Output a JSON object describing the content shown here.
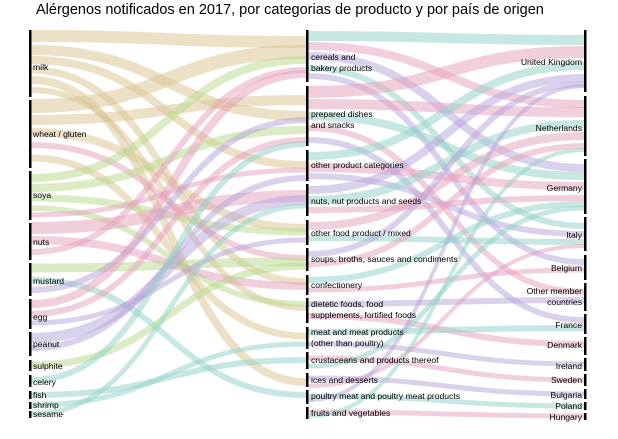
{
  "title": "Alérgenos notificados en 2017, por categorias de producto y por país de origen",
  "chart_data": {
    "type": "sankey",
    "left_column_allergens": [
      "milk",
      "wheat / gluten",
      "soya",
      "nuts",
      "mustard",
      "egg",
      "peanut",
      "sulphite",
      "celery",
      "fish",
      "shrimp",
      "sesame"
    ],
    "middle_column_product_categories": [
      "cereals and bakery products",
      "prepared dishes and snacks",
      "other product categories",
      "nuts, nut products and seeds",
      "other food product / mixed",
      "soups, broths, sauces and condiments",
      "confectionery",
      "dietetic foods, food supplements, fortified foods",
      "meat and meat products (other than poultry)",
      "crustaceans and products thereof",
      "ices and desserts",
      "poultry meat and poultry meat products",
      "fruits and vegetables"
    ],
    "right_column_countries": [
      "United Kingdom",
      "Netherlands",
      "Germany",
      "Italy",
      "Belgium",
      "Other member countries",
      "France",
      "Denmark",
      "Ireland",
      "Sweden",
      "Bulgaria",
      "Poland",
      "Hungary"
    ]
  },
  "labels": {
    "left": {
      "milk": "milk",
      "wheat": "wheat / gluten",
      "soya": "soya",
      "nuts": "nuts",
      "mustard": "mustard",
      "egg": "egg",
      "peanut": "peanut",
      "sulphite": "sulphite",
      "celery": "celery",
      "fish": "fish",
      "shrimp": "shrimp",
      "sesame": "sesame"
    },
    "mid": {
      "cereals_1": "cereals and",
      "cereals_2": "bakery products",
      "prepared_1": "prepared dishes",
      "prepared_2": "and snacks",
      "other_cat": "other product categories",
      "nuts_seeds": "nuts, nut products and seeds",
      "other_food": "other food product / mixed",
      "soups": "soups, broths, sauces and condiments",
      "confectionery": "confectionery",
      "dietetic_1": "dietetic foods, food",
      "dietetic_2": "supplements, fortified foods",
      "meat_1": "meat and meat products",
      "meat_2": "(other than poultry)",
      "crustaceans": "crustaceans and products thereof",
      "ices": "ices and desserts",
      "poultry": "poultry meat and poultry meat products",
      "fruits": "fruits and vegetables"
    },
    "right": {
      "uk": "United Kingdom",
      "nl": "Netherlands",
      "de": "Germany",
      "it": "Italy",
      "be": "Belgium",
      "other_1": "Other member",
      "other_2": "countries",
      "fr": "France",
      "dk": "Denmark",
      "ie": "Ireland",
      "se": "Sweden",
      "bg": "Bulgaria",
      "pl": "Poland",
      "hu": "Hungary"
    }
  },
  "colors": {
    "tan": "#d9c48f",
    "pink": "#e6a0bb",
    "teal": "#8fd1c6",
    "lavender": "#b5a3dc",
    "green": "#b8d98a",
    "node": "#000000"
  }
}
